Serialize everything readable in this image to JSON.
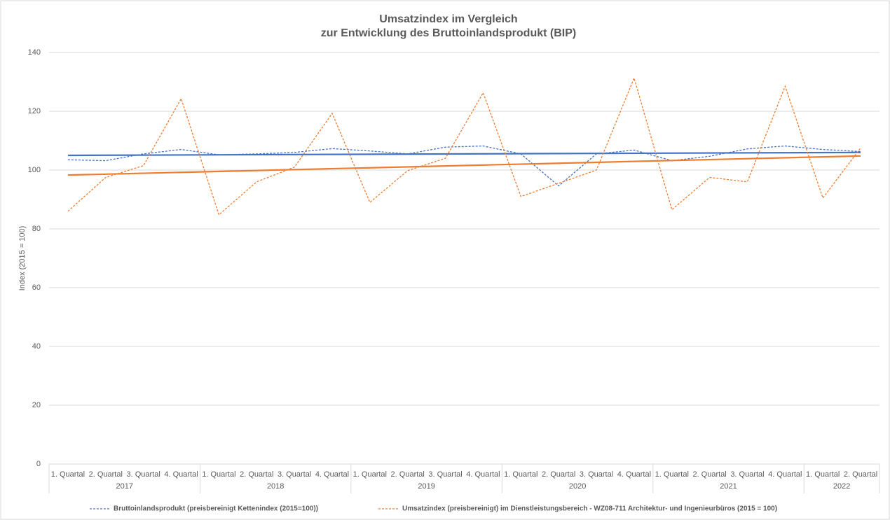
{
  "chart_data": {
    "type": "line",
    "title": [
      "Umsatzindex im Vergleich",
      "zur Entwicklung des Bruttoinlandsprodukt (BIP)"
    ],
    "y_label": "Index (2015 = 100)",
    "categories": [
      "1. Quartal",
      "2. Quartal",
      "3. Quartal",
      "4. Quartal",
      "1. Quartal",
      "2. Quartal",
      "3. Quartal",
      "4. Quartal",
      "1. Quartal",
      "2. Quartal",
      "3. Quartal",
      "4. Quartal",
      "1. Quartal",
      "2. Quartal",
      "3. Quartal",
      "4. Quartal",
      "1. Quartal",
      "2. Quartal",
      "3. Quartal",
      "4. Quartal",
      "1. Quartal",
      "2. Quartal"
    ],
    "groups": [
      "2017",
      "2018",
      "2019",
      "2020",
      "2021",
      "2022"
    ],
    "series": [
      {
        "name": "Bruttoinlandsprodukt (preisbereinigt Kettenindex (2015=100))",
        "color": "#4472c4",
        "values": [
          103.5,
          103.2,
          105.5,
          107,
          105.2,
          105.5,
          106,
          107.3,
          106.5,
          105.5,
          107.8,
          108.2,
          105.5,
          94.6,
          105.5,
          106.8,
          103.2,
          104.7,
          107.2,
          108.2,
          107,
          106.3
        ],
        "trend": [
          105,
          106
        ]
      },
      {
        "name": "Umsatzindex (preisbereinigt) im Dienstleistungsbereich - WZ08-711 Architektur- und Ingenieurbüros (2015 = 100)",
        "color": "#ed7d31",
        "values": [
          86,
          97.5,
          101.5,
          124.3,
          84.8,
          96,
          101,
          119.3,
          89,
          99.8,
          104,
          126.3,
          91,
          95.5,
          100,
          131.3,
          86.5,
          97.5,
          96,
          128.5,
          90.5,
          107.5
        ],
        "trend": [
          98.3,
          104.8
        ]
      }
    ],
    "ylim": [
      0,
      140
    ],
    "yticks": [
      0,
      20,
      40,
      60,
      80,
      100,
      120,
      140
    ],
    "grid": true
  }
}
